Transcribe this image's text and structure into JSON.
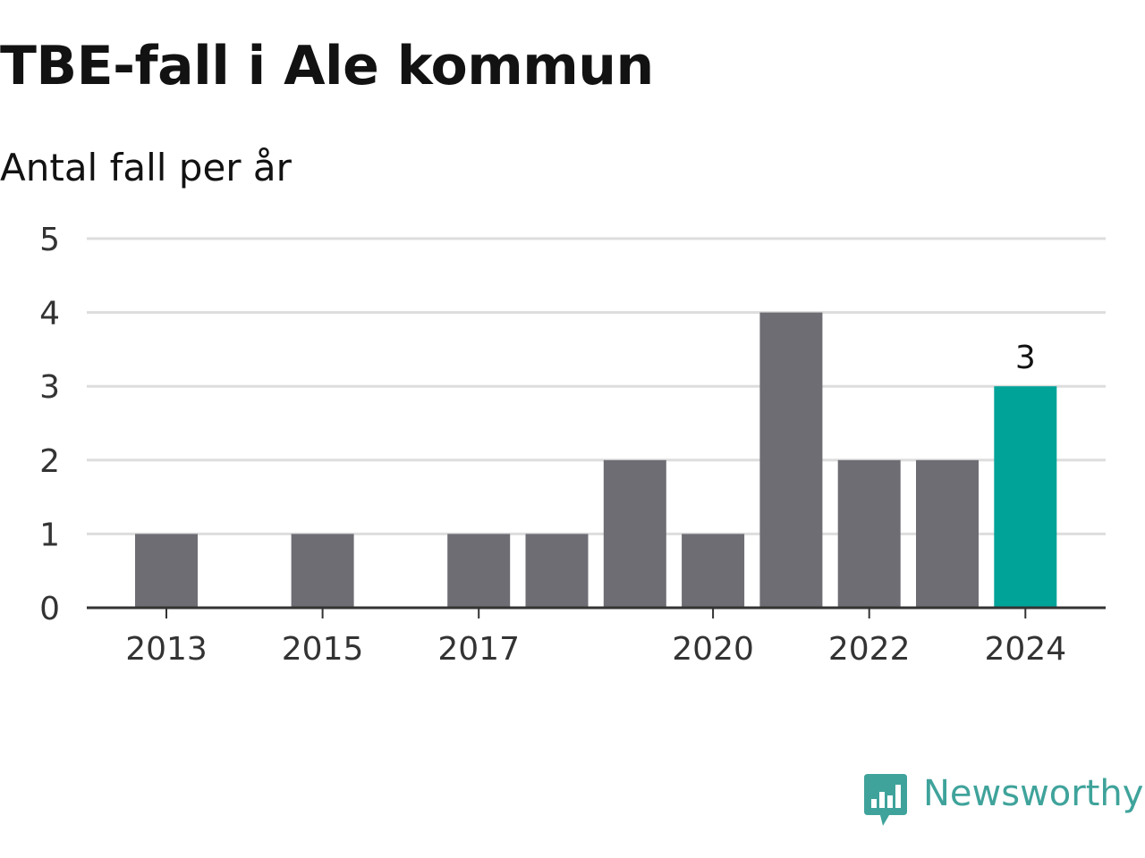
{
  "chart_data": {
    "type": "bar",
    "title": "TBE-fall i Ale kommun",
    "subtitle": "Antal fall per år",
    "categories": [
      "2013",
      "2014",
      "2015",
      "2016",
      "2017",
      "2018",
      "2019",
      "2020",
      "2021",
      "2022",
      "2023",
      "2024"
    ],
    "values": [
      1,
      0,
      1,
      0,
      1,
      1,
      2,
      1,
      4,
      2,
      2,
      3
    ],
    "x_tick_labels": [
      "2013",
      "2015",
      "2017",
      "2020",
      "2022",
      "2024"
    ],
    "y_ticks": [
      0,
      1,
      2,
      3,
      4,
      5
    ],
    "ylim": [
      0,
      5
    ],
    "grid": true,
    "highlight_category": "2024",
    "data_labels": [
      {
        "category": "2024",
        "text": "3"
      }
    ],
    "colors": {
      "bar": "#6e6d74",
      "highlight": "#00a398",
      "grid": "#dddddd",
      "axis": "#333333",
      "text": "#333333"
    }
  },
  "brand": {
    "name": "Newsworthy",
    "icon": "newsworthy-logo-icon",
    "color": "#3fa39b"
  }
}
